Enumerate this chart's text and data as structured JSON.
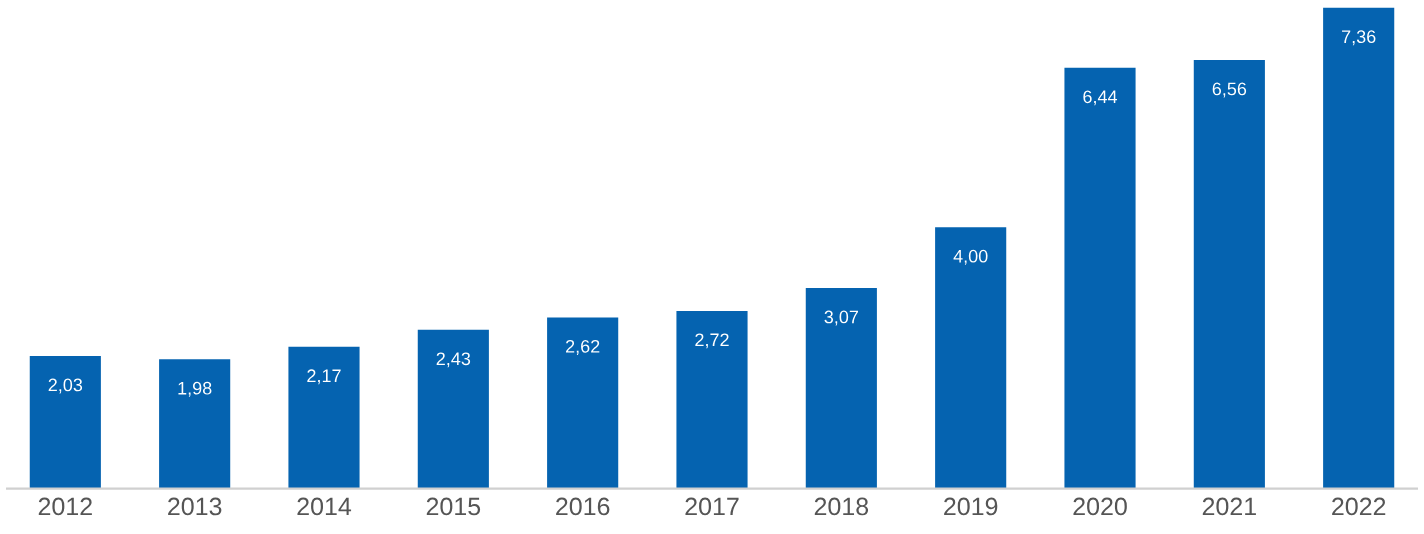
{
  "chart_data": {
    "type": "bar",
    "categories": [
      "2012",
      "2013",
      "2014",
      "2015",
      "2016",
      "2017",
      "2018",
      "2019",
      "2020",
      "2021",
      "2022"
    ],
    "values": [
      2.03,
      1.98,
      2.17,
      2.43,
      2.62,
      2.72,
      3.07,
      4.0,
      6.44,
      6.56,
      7.36
    ],
    "value_labels": [
      "2,03",
      "1,98",
      "2,17",
      "2,43",
      "2,62",
      "2,72",
      "3,07",
      "4,00",
      "6,44",
      "6,56",
      "7,36"
    ],
    "color": "#0563b0",
    "grid": false,
    "legend": false
  }
}
